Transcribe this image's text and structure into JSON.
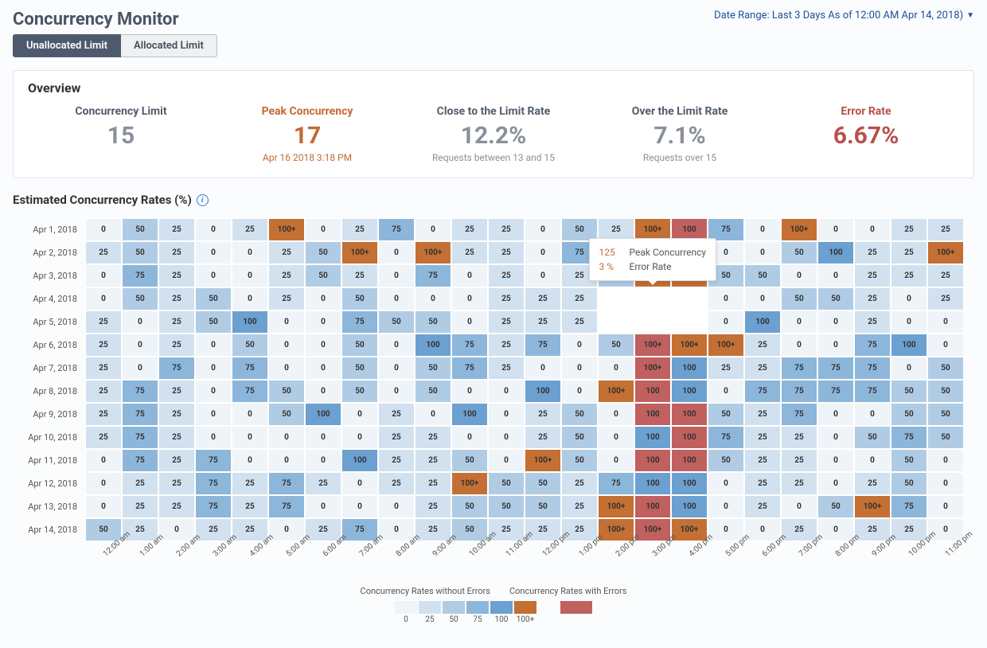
{
  "header": {
    "title": "Concurrency Monitor",
    "date_range_label": "Date Range: Last 3 Days As of 12:00 AM Apr 14, 2018)"
  },
  "tabs": {
    "unallocated": "Unallocated Limit",
    "allocated": "Allocated Limit",
    "active_index": 0
  },
  "overview": {
    "heading": "Overview",
    "metrics": [
      {
        "id": "limit",
        "label": "Concurrency Limit",
        "value": "15",
        "sub": "",
        "tone": "gray"
      },
      {
        "id": "peak",
        "label": "Peak Concurrency",
        "value": "17",
        "sub": "Apr 16 2018 3:18 PM",
        "tone": "orange"
      },
      {
        "id": "close",
        "label": "Close to the Limit Rate",
        "value": "12.2%",
        "sub": "Requests between 13 and 15",
        "tone": "gray"
      },
      {
        "id": "over",
        "label": "Over the Limit Rate",
        "value": "7.1%",
        "sub": "Requests over 15",
        "tone": "gray"
      },
      {
        "id": "error",
        "label": "Error Rate",
        "value": "6.67%",
        "sub": "",
        "tone": "red"
      }
    ]
  },
  "heatmap": {
    "title": "Estimated Concurrency Rates (%)",
    "row_labels": [
      "Apr 1, 2018",
      "Apr 2, 2018",
      "Apr 3, 2018",
      "Apr 4, 2018",
      "Apr 5, 2018",
      "Apr 6, 2018",
      "Apr 7, 2018",
      "Apr 8, 2018",
      "Apr 9, 2018",
      "Apr 10, 2018",
      "Apr 11, 2018",
      "Apr 12, 2018",
      "Apr 13, 2018",
      "Apr 14, 2018"
    ],
    "col_labels": [
      "12:00 am",
      "1:00 am",
      "2:00 am",
      "3:00 am",
      "4:00 am",
      "5:00 am",
      "6:00 am",
      "7:00 am",
      "8:00 am",
      "9:00 am",
      "10:00 am",
      "11:00 am",
      "12:00 pm",
      "1:00 pm",
      "2:00 pm",
      "3:00 pm",
      "4:00 pm",
      "5:00 pm",
      "6:00 pm",
      "7:00 pm",
      "8:00 pm",
      "9:00 pm",
      "10:00 pm",
      "11:00 pm"
    ],
    "cell_labels": [
      "0",
      "25",
      "50",
      "75",
      "100",
      "100+"
    ],
    "palette": {
      "no_error": {
        "0": "#eff4f8",
        "25": "#d2e1ef",
        "50": "#b0cce5",
        "75": "#8db6db",
        "100": "#6ba0d1",
        "100+": "#c46f33"
      },
      "with_error": "#c0605f"
    },
    "cells": [
      [
        [
          0,
          0
        ],
        [
          50,
          0
        ],
        [
          25,
          0
        ],
        [
          0,
          0
        ],
        [
          25,
          0
        ],
        [
          "100+",
          0
        ],
        [
          0,
          0
        ],
        [
          25,
          0
        ],
        [
          75,
          0
        ],
        [
          0,
          0
        ],
        [
          25,
          0
        ],
        [
          25,
          0
        ],
        [
          0,
          0
        ],
        [
          50,
          0
        ],
        [
          25,
          0
        ],
        [
          "100+",
          0
        ],
        [
          100,
          1
        ],
        [
          75,
          0
        ],
        [
          0,
          0
        ],
        [
          "100+",
          0
        ],
        [
          0,
          0
        ],
        [
          0,
          0
        ],
        [
          25,
          0
        ],
        [
          25,
          0
        ]
      ],
      [
        [
          25,
          0
        ],
        [
          50,
          0
        ],
        [
          25,
          0
        ],
        [
          0,
          0
        ],
        [
          0,
          0
        ],
        [
          25,
          0
        ],
        [
          50,
          0
        ],
        [
          "100+",
          0
        ],
        [
          0,
          0
        ],
        [
          "100+",
          0
        ],
        [
          25,
          0
        ],
        [
          25,
          0
        ],
        [
          0,
          0
        ],
        [
          75,
          0
        ],
        [
          0,
          0
        ],
        [
          100,
          0
        ],
        [
          100,
          0
        ],
        [
          0,
          0
        ],
        [
          0,
          0
        ],
        [
          50,
          0
        ],
        [
          100,
          0
        ],
        [
          25,
          0
        ],
        [
          25,
          0
        ],
        [
          "100+",
          0
        ]
      ],
      [
        [
          0,
          0
        ],
        [
          75,
          0
        ],
        [
          25,
          0
        ],
        [
          0,
          0
        ],
        [
          0,
          0
        ],
        [
          25,
          0
        ],
        [
          50,
          0
        ],
        [
          25,
          0
        ],
        [
          0,
          0
        ],
        [
          75,
          0
        ],
        [
          0,
          0
        ],
        [
          25,
          0
        ],
        [
          0,
          0
        ],
        [
          25,
          0
        ],
        [
          50,
          0
        ],
        [
          "100+",
          0
        ],
        [
          "100+",
          0
        ],
        [
          50,
          0
        ],
        [
          50,
          0
        ],
        [
          0,
          0
        ],
        [
          0,
          0
        ],
        [
          25,
          0
        ],
        [
          25,
          0
        ],
        [
          25,
          0
        ]
      ],
      [
        [
          0,
          0
        ],
        [
          50,
          0
        ],
        [
          25,
          0
        ],
        [
          50,
          0
        ],
        [
          0,
          0
        ],
        [
          25,
          0
        ],
        [
          0,
          0
        ],
        [
          50,
          0
        ],
        [
          0,
          0
        ],
        [
          0,
          0
        ],
        [
          0,
          0
        ],
        [
          25,
          0
        ],
        [
          25,
          0
        ],
        [
          25,
          0
        ],
        [
          null,
          0
        ],
        [
          null,
          0
        ],
        [
          null,
          0
        ],
        [
          0,
          0
        ],
        [
          0,
          0
        ],
        [
          50,
          0
        ],
        [
          50,
          0
        ],
        [
          25,
          0
        ],
        [
          0,
          0
        ],
        [
          25,
          0
        ]
      ],
      [
        [
          25,
          0
        ],
        [
          0,
          0
        ],
        [
          25,
          0
        ],
        [
          50,
          0
        ],
        [
          100,
          0
        ],
        [
          0,
          0
        ],
        [
          0,
          0
        ],
        [
          75,
          0
        ],
        [
          50,
          0
        ],
        [
          50,
          0
        ],
        [
          0,
          0
        ],
        [
          25,
          0
        ],
        [
          25,
          0
        ],
        [
          25,
          0
        ],
        [
          null,
          0
        ],
        [
          null,
          0
        ],
        [
          null,
          0
        ],
        [
          0,
          0
        ],
        [
          100,
          0
        ],
        [
          0,
          0
        ],
        [
          0,
          0
        ],
        [
          25,
          0
        ],
        [
          0,
          0
        ],
        [
          0,
          0
        ]
      ],
      [
        [
          25,
          0
        ],
        [
          0,
          0
        ],
        [
          25,
          0
        ],
        [
          0,
          0
        ],
        [
          50,
          0
        ],
        [
          0,
          0
        ],
        [
          0,
          0
        ],
        [
          50,
          0
        ],
        [
          0,
          0
        ],
        [
          100,
          0
        ],
        [
          75,
          0
        ],
        [
          25,
          0
        ],
        [
          75,
          0
        ],
        [
          0,
          0
        ],
        [
          50,
          0
        ],
        [
          "100+",
          1
        ],
        [
          "100+",
          0
        ],
        [
          "100+",
          0
        ],
        [
          25,
          0
        ],
        [
          0,
          0
        ],
        [
          0,
          0
        ],
        [
          75,
          0
        ],
        [
          100,
          0
        ],
        [
          0,
          0
        ]
      ],
      [
        [
          25,
          0
        ],
        [
          0,
          0
        ],
        [
          75,
          0
        ],
        [
          0,
          0
        ],
        [
          75,
          0
        ],
        [
          0,
          0
        ],
        [
          0,
          0
        ],
        [
          50,
          0
        ],
        [
          0,
          0
        ],
        [
          50,
          0
        ],
        [
          75,
          0
        ],
        [
          25,
          0
        ],
        [
          0,
          0
        ],
        [
          0,
          0
        ],
        [
          0,
          0
        ],
        [
          "100+",
          1
        ],
        [
          100,
          0
        ],
        [
          25,
          0
        ],
        [
          25,
          0
        ],
        [
          75,
          0
        ],
        [
          75,
          0
        ],
        [
          75,
          0
        ],
        [
          0,
          0
        ],
        [
          50,
          0
        ]
      ],
      [
        [
          25,
          0
        ],
        [
          75,
          0
        ],
        [
          25,
          0
        ],
        [
          0,
          0
        ],
        [
          75,
          0
        ],
        [
          50,
          0
        ],
        [
          0,
          0
        ],
        [
          50,
          0
        ],
        [
          0,
          0
        ],
        [
          50,
          0
        ],
        [
          0,
          0
        ],
        [
          0,
          0
        ],
        [
          100,
          0
        ],
        [
          0,
          0
        ],
        [
          "100+",
          0
        ],
        [
          100,
          1
        ],
        [
          100,
          0
        ],
        [
          0,
          0
        ],
        [
          75,
          0
        ],
        [
          75,
          0
        ],
        [
          75,
          0
        ],
        [
          75,
          0
        ],
        [
          50,
          0
        ],
        [
          50,
          0
        ]
      ],
      [
        [
          25,
          0
        ],
        [
          75,
          0
        ],
        [
          25,
          0
        ],
        [
          0,
          0
        ],
        [
          0,
          0
        ],
        [
          50,
          0
        ],
        [
          100,
          0
        ],
        [
          0,
          0
        ],
        [
          25,
          0
        ],
        [
          0,
          0
        ],
        [
          100,
          0
        ],
        [
          0,
          0
        ],
        [
          25,
          0
        ],
        [
          50,
          0
        ],
        [
          0,
          0
        ],
        [
          100,
          1
        ],
        [
          100,
          1
        ],
        [
          50,
          0
        ],
        [
          25,
          0
        ],
        [
          75,
          0
        ],
        [
          0,
          0
        ],
        [
          0,
          0
        ],
        [
          50,
          0
        ],
        [
          50,
          0
        ]
      ],
      [
        [
          25,
          0
        ],
        [
          75,
          0
        ],
        [
          25,
          0
        ],
        [
          0,
          0
        ],
        [
          0,
          0
        ],
        [
          0,
          0
        ],
        [
          0,
          0
        ],
        [
          0,
          0
        ],
        [
          25,
          0
        ],
        [
          25,
          0
        ],
        [
          0,
          0
        ],
        [
          0,
          0
        ],
        [
          25,
          0
        ],
        [
          50,
          0
        ],
        [
          0,
          0
        ],
        [
          100,
          0
        ],
        [
          100,
          1
        ],
        [
          75,
          0
        ],
        [
          25,
          0
        ],
        [
          25,
          0
        ],
        [
          0,
          0
        ],
        [
          50,
          0
        ],
        [
          75,
          0
        ],
        [
          50,
          0
        ]
      ],
      [
        [
          0,
          0
        ],
        [
          75,
          0
        ],
        [
          25,
          0
        ],
        [
          75,
          0
        ],
        [
          0,
          0
        ],
        [
          0,
          0
        ],
        [
          0,
          0
        ],
        [
          100,
          0
        ],
        [
          25,
          0
        ],
        [
          25,
          0
        ],
        [
          50,
          0
        ],
        [
          0,
          0
        ],
        [
          "100+",
          0
        ],
        [
          50,
          0
        ],
        [
          0,
          0
        ],
        [
          100,
          1
        ],
        [
          100,
          1
        ],
        [
          50,
          0
        ],
        [
          25,
          0
        ],
        [
          25,
          0
        ],
        [
          0,
          0
        ],
        [
          0,
          0
        ],
        [
          50,
          0
        ],
        [
          0,
          0
        ]
      ],
      [
        [
          0,
          0
        ],
        [
          25,
          0
        ],
        [
          25,
          0
        ],
        [
          75,
          0
        ],
        [
          25,
          0
        ],
        [
          75,
          0
        ],
        [
          25,
          0
        ],
        [
          0,
          0
        ],
        [
          25,
          0
        ],
        [
          25,
          0
        ],
        [
          "100+",
          0
        ],
        [
          50,
          0
        ],
        [
          50,
          0
        ],
        [
          25,
          0
        ],
        [
          75,
          0
        ],
        [
          100,
          0
        ],
        [
          100,
          0
        ],
        [
          0,
          0
        ],
        [
          25,
          0
        ],
        [
          25,
          0
        ],
        [
          0,
          0
        ],
        [
          25,
          0
        ],
        [
          50,
          0
        ],
        [
          0,
          0
        ]
      ],
      [
        [
          0,
          0
        ],
        [
          25,
          0
        ],
        [
          25,
          0
        ],
        [
          75,
          0
        ],
        [
          25,
          0
        ],
        [
          75,
          0
        ],
        [
          0,
          0
        ],
        [
          0,
          0
        ],
        [
          0,
          0
        ],
        [
          25,
          0
        ],
        [
          50,
          0
        ],
        [
          50,
          0
        ],
        [
          50,
          0
        ],
        [
          25,
          0
        ],
        [
          "100+",
          0
        ],
        [
          100,
          1
        ],
        [
          100,
          0
        ],
        [
          0,
          0
        ],
        [
          25,
          0
        ],
        [
          0,
          0
        ],
        [
          50,
          0
        ],
        [
          "100+",
          0
        ],
        [
          75,
          0
        ],
        [
          0,
          0
        ]
      ],
      [
        [
          50,
          0
        ],
        [
          25,
          0
        ],
        [
          0,
          0
        ],
        [
          25,
          0
        ],
        [
          25,
          0
        ],
        [
          0,
          0
        ],
        [
          25,
          0
        ],
        [
          75,
          0
        ],
        [
          0,
          0
        ],
        [
          25,
          0
        ],
        [
          50,
          0
        ],
        [
          25,
          0
        ],
        [
          25,
          0
        ],
        [
          25,
          0
        ],
        [
          "100+",
          0
        ],
        [
          "100+",
          1
        ],
        [
          "100+",
          0
        ],
        [
          0,
          0
        ],
        [
          0,
          0
        ],
        [
          25,
          0
        ],
        [
          0,
          0
        ],
        [
          25,
          0
        ],
        [
          25,
          0
        ],
        [
          0,
          0
        ]
      ]
    ],
    "tooltip": {
      "row": 3,
      "col": 15,
      "peak_value": "125",
      "peak_label": "Peak Concurrency",
      "error_value": "3 %",
      "error_label": "Error Rate"
    }
  },
  "legend": {
    "title_no_error": "Concurrency Rates without Errors",
    "title_with_error": "Concurrency Rates with Errors",
    "buckets": [
      "0",
      "25",
      "50",
      "75",
      "100",
      "100+"
    ]
  }
}
